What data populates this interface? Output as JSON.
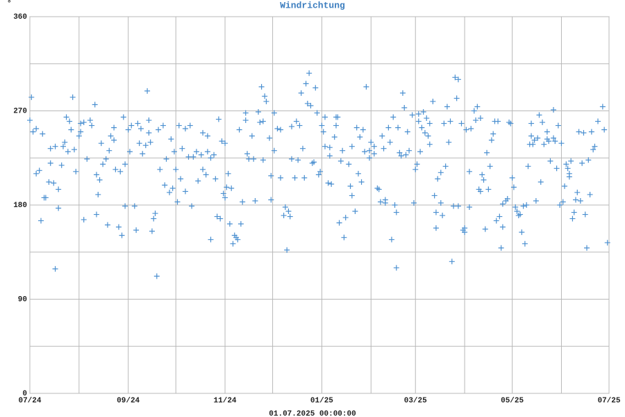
{
  "chart_data": {
    "type": "scatter",
    "title": "Windrichtung",
    "y_unit": "°",
    "footer": "01.07.2025 00:00:00",
    "color": "#4a8fd0",
    "marker": "plus",
    "grid": true,
    "xlim": [
      0,
      365
    ],
    "ylim": [
      0,
      360
    ],
    "xticks": [
      {
        "value": 0,
        "label": "07/24"
      },
      {
        "value": 62,
        "label": "09/24"
      },
      {
        "value": 123,
        "label": "11/24"
      },
      {
        "value": 184,
        "label": "01/25"
      },
      {
        "value": 243,
        "label": "03/25"
      },
      {
        "value": 304,
        "label": "05/25"
      },
      {
        "value": 365,
        "label": "07/25"
      }
    ],
    "xgrid": [
      31,
      92,
      153,
      215,
      274,
      335
    ],
    "yticks": [
      0,
      90,
      180,
      270,
      360
    ],
    "ygrid": [
      45,
      135,
      225,
      315
    ],
    "x": [
      0,
      1,
      2,
      4,
      4,
      6,
      7,
      8,
      9,
      10,
      12,
      13,
      13,
      15,
      16,
      16,
      18,
      18,
      20,
      21,
      22,
      23,
      24,
      25,
      26,
      27,
      28,
      29,
      31,
      32,
      32,
      34,
      34,
      36,
      38,
      39,
      41,
      42,
      42,
      43,
      44,
      45,
      46,
      48,
      49,
      50,
      51,
      53,
      53,
      54,
      56,
      57,
      58,
      59,
      60,
      60,
      62,
      63,
      64,
      66,
      67,
      68,
      69,
      70,
      71,
      73,
      74,
      75,
      75,
      76,
      77,
      78,
      79,
      80,
      81,
      82,
      84,
      85,
      86,
      88,
      89,
      90,
      91,
      92,
      93,
      94,
      95,
      96,
      98,
      98,
      100,
      101,
      102,
      103,
      105,
      106,
      108,
      109,
      109,
      111,
      112,
      112,
      114,
      114,
      116,
      117,
      118,
      119,
      120,
      121,
      122,
      123,
      123,
      124,
      125,
      126,
      127,
      128,
      129,
      130,
      131,
      132,
      133,
      134,
      136,
      136,
      137,
      138,
      140,
      141,
      142,
      144,
      145,
      146,
      147,
      147,
      148,
      149,
      151,
      152,
      152,
      154,
      154,
      156,
      158,
      158,
      160,
      161,
      162,
      163,
      164,
      165,
      165,
      167,
      168,
      169,
      170,
      171,
      172,
      173,
      174,
      175,
      176,
      177,
      178,
      179,
      180,
      181,
      182,
      183,
      184,
      185,
      186,
      186,
      188,
      189,
      189,
      190,
      192,
      193,
      193,
      194,
      195,
      196,
      197,
      198,
      199,
      201,
      202,
      203,
      203,
      205,
      206,
      207,
      208,
      209,
      210,
      211,
      212,
      214,
      214,
      215,
      217,
      217,
      219,
      220,
      221,
      222,
      223,
      224,
      224,
      226,
      227,
      228,
      229,
      230,
      231,
      231,
      232,
      233,
      234,
      235,
      236,
      237,
      238,
      239,
      241,
      242,
      243,
      244,
      245,
      245,
      246,
      247,
      248,
      249,
      250,
      251,
      252,
      252,
      254,
      255,
      256,
      256,
      257,
      259,
      259,
      260,
      261,
      262,
      263,
      264,
      265,
      266,
      267,
      268,
      269,
      270,
      270,
      272,
      273,
      274,
      274,
      275,
      277,
      277,
      278,
      280,
      281,
      282,
      283,
      284,
      284,
      285,
      286,
      287,
      288,
      289,
      290,
      291,
      292,
      293,
      294,
      295,
      296,
      297,
      298,
      298,
      300,
      301,
      302,
      303,
      304,
      305,
      306,
      307,
      308,
      309,
      310,
      311,
      312,
      313,
      314,
      315,
      316,
      316,
      317,
      318,
      319,
      320,
      321,
      322,
      323,
      324,
      326,
      326,
      327,
      328,
      330,
      330,
      331,
      332,
      333,
      334,
      335,
      336,
      337,
      338,
      339,
      340,
      340,
      341,
      342,
      343,
      344,
      345,
      346,
      347,
      348,
      349,
      350,
      351,
      352,
      353,
      354,
      355,
      356,
      358,
      361,
      362,
      364
    ],
    "values": [
      261,
      283,
      250,
      253,
      210,
      213,
      165,
      248,
      187,
      187,
      202,
      234,
      220,
      201,
      236,
      119,
      195,
      177,
      218,
      236,
      240,
      264,
      231,
      260,
      252,
      283,
      233,
      212,
      246,
      258,
      250,
      259,
      166,
      224,
      261,
      256,
      276,
      209,
      171,
      190,
      204,
      239,
      219,
      224,
      161,
      232,
      246,
      254,
      242,
      214,
      159,
      212,
      151,
      264,
      219,
      179,
      252,
      231,
      256,
      179,
      156,
      258,
      239,
      253,
      229,
      237,
      289,
      249,
      261,
      240,
      155,
      167,
      172,
      112,
      252,
      214,
      256,
      199,
      224,
      192,
      243,
      196,
      231,
      214,
      183,
      256,
      205,
      234,
      253,
      193,
      226,
      256,
      179,
      226,
      231,
      203,
      228,
      214,
      249,
      209,
      231,
      246,
      147,
      225,
      228,
      205,
      169,
      262,
      167,
      241,
      191,
      239,
      187,
      197,
      210,
      162,
      196,
      143,
      151,
      149,
      147,
      252,
      162,
      183,
      261,
      268,
      229,
      224,
      246,
      224,
      184,
      269,
      259,
      293,
      223,
      260,
      284,
      279,
      244,
      185,
      208,
      232,
      268,
      253,
      252,
      206,
      170,
      178,
      137,
      174,
      169,
      224,
      255,
      206,
      260,
      223,
      256,
      287,
      234,
      206,
      296,
      277,
      306,
      275,
      220,
      221,
      292,
      268,
      209,
      212,
      256,
      250,
      264,
      236,
      201,
      235,
      227,
      200,
      245,
      256,
      264,
      264,
      163,
      222,
      232,
      149,
      168,
      219,
      198,
      189,
      236,
      174,
      254,
      210,
      245,
      202,
      252,
      231,
      293,
      232,
      225,
      240,
      229,
      236,
      196,
      195,
      183,
      246,
      234,
      185,
      182,
      254,
      240,
      147,
      264,
      180,
      120,
      173,
      254,
      230,
      227,
      287,
      273,
      228,
      250,
      232,
      266,
      182,
      214,
      219,
      260,
      267,
      231,
      254,
      269,
      249,
      263,
      246,
      258,
      238,
      279,
      189,
      173,
      158,
      205,
      182,
      211,
      170,
      258,
      217,
      274,
      240,
      260,
      126,
      179,
      302,
      282,
      300,
      179,
      258,
      156,
      154,
      158,
      252,
      178,
      212,
      253,
      270,
      261,
      274,
      195,
      263,
      193,
      209,
      204,
      157,
      230,
      195,
      217,
      242,
      248,
      260,
      165,
      260,
      169,
      139,
      159,
      181,
      184,
      186,
      259,
      258,
      206,
      197,
      178,
      174,
      170,
      171,
      154,
      179,
      143,
      180,
      217,
      238,
      246,
      258,
      238,
      242,
      184,
      244,
      266,
      202,
      259,
      238,
      250,
      243,
      241,
      222,
      271,
      244,
      241,
      215,
      256,
      180,
      239,
      183,
      198,
      219,
      215,
      210,
      207,
      222,
      167,
      173,
      185,
      192,
      250,
      184,
      220,
      249,
      171,
      139,
      223,
      190,
      250,
      233,
      236,
      260,
      274,
      252,
      144
    ]
  }
}
